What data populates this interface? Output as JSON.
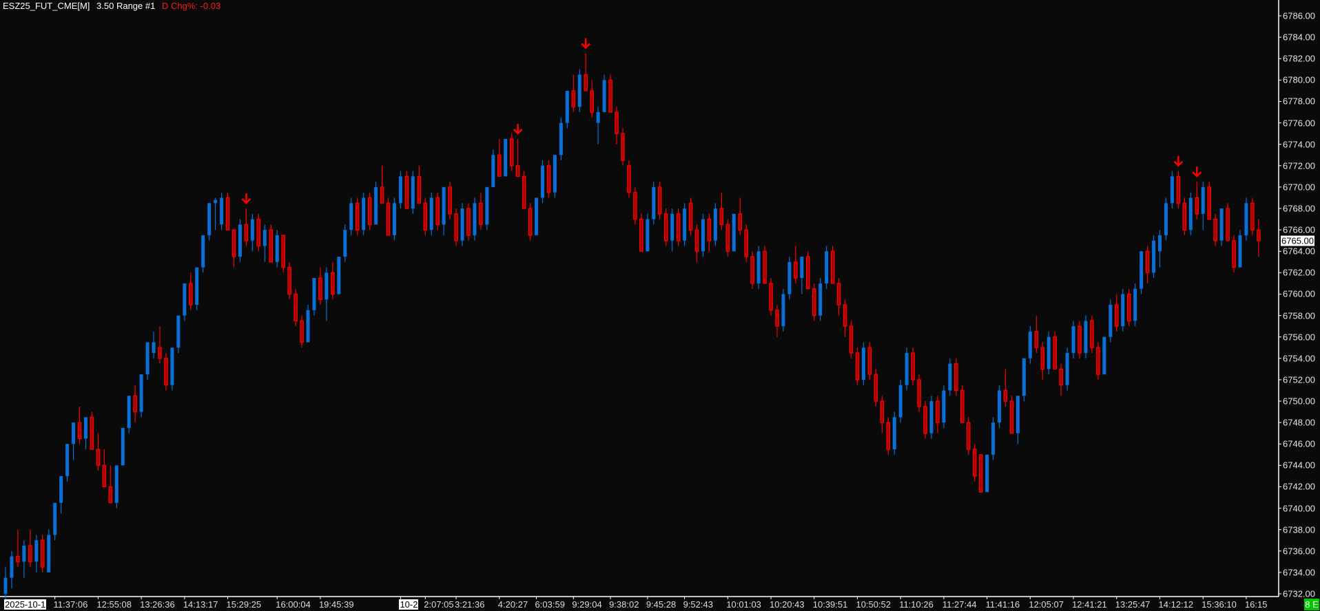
{
  "header": {
    "symbol": "ESZ25_FUT_CME[M]",
    "bar_type": "3.50 Range #1",
    "change": "D Chg%: -0.03"
  },
  "colors": {
    "background": "#0b0a0b",
    "up": "#0a6fd6",
    "down_border": "#ff0000",
    "down_fill": "#a80000",
    "signal": "#ff0000",
    "badge": "#00c800"
  },
  "current_price": "6765.00",
  "status_badge": "8 E",
  "chart_data": {
    "type": "candlestick",
    "ylim": [
      6732,
      6786
    ],
    "y_ticks": [
      "6786.00",
      "6784.00",
      "6782.00",
      "6780.00",
      "6778.00",
      "6776.00",
      "6774.00",
      "6772.00",
      "6770.00",
      "6768.00",
      "6766.00",
      "6764.00",
      "6762.00",
      "6760.00",
      "6758.00",
      "6756.00",
      "6754.00",
      "6752.00",
      "6750.00",
      "6748.00",
      "6746.00",
      "6744.00",
      "6742.00",
      "6740.00",
      "6738.00",
      "6736.00",
      "6734.00",
      "6732.00"
    ],
    "x_ticks": [
      {
        "bar": 0,
        "label": "2025-10-1",
        "date": true
      },
      {
        "bar": 8,
        "label": "11:37:06"
      },
      {
        "bar": 15,
        "label": "12:55:08"
      },
      {
        "bar": 22,
        "label": "13:26:36"
      },
      {
        "bar": 29,
        "label": "14:13:17"
      },
      {
        "bar": 36,
        "label": "15:29:25"
      },
      {
        "bar": 44,
        "label": "16:00:04"
      },
      {
        "bar": 51,
        "label": "19:45:39"
      },
      {
        "bar": 64,
        "label": "10-2",
        "date": true
      },
      {
        "bar": 68,
        "label": "2:07:05"
      },
      {
        "bar": 73,
        "label": "3:21:36"
      },
      {
        "bar": 80,
        "label": "4:20:27"
      },
      {
        "bar": 86,
        "label": "6:03:59"
      },
      {
        "bar": 92,
        "label": "9:29:04"
      },
      {
        "bar": 98,
        "label": "9:38:02"
      },
      {
        "bar": 104,
        "label": "9:45:28"
      },
      {
        "bar": 110,
        "label": "9:52:43"
      },
      {
        "bar": 117,
        "label": "10:01:03"
      },
      {
        "bar": 124,
        "label": "10:20:43"
      },
      {
        "bar": 131,
        "label": "10:39:51"
      },
      {
        "bar": 138,
        "label": "10:50:52"
      },
      {
        "bar": 145,
        "label": "11:10:26"
      },
      {
        "bar": 152,
        "label": "11:27:44"
      },
      {
        "bar": 159,
        "label": "11:41:16"
      },
      {
        "bar": 166,
        "label": "12:05:07"
      },
      {
        "bar": 173,
        "label": "12:41:21"
      },
      {
        "bar": 180,
        "label": "13:25:47"
      },
      {
        "bar": 187,
        "label": "14:12:12"
      },
      {
        "bar": 194,
        "label": "15:36:10"
      },
      {
        "bar": 201,
        "label": "16:15"
      }
    ],
    "signals_down_arrow_bars": [
      39,
      83,
      94,
      190,
      193
    ],
    "candles_ohlc": [
      [
        6732,
        6734.5,
        6731,
        6733.5
      ],
      [
        6733.5,
        6736,
        6732.5,
        6735.5
      ],
      [
        6735.5,
        6738,
        6734.5,
        6735
      ],
      [
        6735,
        6737,
        6733.5,
        6736.5
      ],
      [
        6736.5,
        6738,
        6734.5,
        6735
      ],
      [
        6735,
        6737.5,
        6734,
        6737
      ],
      [
        6737,
        6737.5,
        6734,
        6734.5
      ],
      [
        6734,
        6738,
        6734,
        6737.5
      ],
      [
        6737.5,
        6740.5,
        6737,
        6740.5
      ],
      [
        6740.5,
        6743,
        6739.5,
        6743
      ],
      [
        6743,
        6746,
        6742.5,
        6746
      ],
      [
        6746,
        6748,
        6744.5,
        6748
      ],
      [
        6748,
        6749.5,
        6746,
        6746.5
      ],
      [
        6746.5,
        6748.5,
        6745.5,
        6748.5
      ],
      [
        6748.5,
        6749,
        6745.5,
        6745.5
      ],
      [
        6745.5,
        6747,
        6743.5,
        6744
      ],
      [
        6744,
        6745.5,
        6742,
        6742
      ],
      [
        6742,
        6744,
        6740.5,
        6740.5
      ],
      [
        6740.5,
        6744,
        6740,
        6744
      ],
      [
        6744,
        6747.5,
        6744,
        6747.5
      ],
      [
        6747.5,
        6750.5,
        6747,
        6750.5
      ],
      [
        6750.5,
        6751.5,
        6748,
        6749
      ],
      [
        6749,
        6752.5,
        6748.5,
        6752.5
      ],
      [
        6752.5,
        6755.5,
        6752,
        6755.5
      ],
      [
        6754.5,
        6756.5,
        6754,
        6755.5
      ],
      [
        6755,
        6757,
        6753.5,
        6754
      ],
      [
        6754,
        6754.5,
        6751,
        6751.5
      ],
      [
        6751.5,
        6755,
        6751,
        6755
      ],
      [
        6755,
        6758,
        6754.5,
        6758
      ],
      [
        6758,
        6761,
        6757.5,
        6761
      ],
      [
        6761,
        6762,
        6758.5,
        6759
      ],
      [
        6759,
        6762.5,
        6758.5,
        6762.5
      ],
      [
        6762.5,
        6765.5,
        6762,
        6765.5
      ],
      [
        6765.5,
        6768.5,
        6765,
        6768.5
      ],
      [
        6768.5,
        6769,
        6766,
        6768.8
      ],
      [
        6766.5,
        6769.5,
        6766,
        6769
      ],
      [
        6769,
        6769.5,
        6766,
        6766
      ],
      [
        6766,
        6766,
        6762.5,
        6763.5
      ],
      [
        6763.5,
        6767,
        6763,
        6766.5
      ],
      [
        6766.5,
        6768,
        6764.5,
        6765
      ],
      [
        6765,
        6767.5,
        6764,
        6767
      ],
      [
        6767,
        6767.5,
        6764,
        6764.5
      ],
      [
        6764.5,
        6766.5,
        6763,
        6766
      ],
      [
        6766,
        6766.5,
        6763,
        6763
      ],
      [
        6763,
        6766,
        6762.5,
        6765.5
      ],
      [
        6765.5,
        6765.5,
        6762,
        6762.5
      ],
      [
        6762.5,
        6763,
        6759.5,
        6760
      ],
      [
        6760,
        6760.5,
        6757,
        6757.5
      ],
      [
        6757.5,
        6758,
        6755,
        6755.5
      ],
      [
        6755.5,
        6759,
        6755.5,
        6758.5
      ],
      [
        6758.5,
        6761.5,
        6758,
        6761.5
      ],
      [
        6761.5,
        6762.5,
        6759,
        6759.5
      ],
      [
        6759.5,
        6762.5,
        6757.5,
        6762
      ],
      [
        6762,
        6763,
        6759.5,
        6760
      ],
      [
        6760,
        6763.5,
        6760,
        6763.5
      ],
      [
        6763.5,
        6766.5,
        6763,
        6766
      ],
      [
        6766,
        6769,
        6765.5,
        6768.5
      ],
      [
        6768.5,
        6769,
        6765.5,
        6766
      ],
      [
        6766,
        6769.5,
        6765.5,
        6769
      ],
      [
        6769,
        6769.5,
        6766,
        6766.5
      ],
      [
        6766.5,
        6770.5,
        6766.5,
        6770
      ],
      [
        6770,
        6772,
        6768.5,
        6768.5
      ],
      [
        6768.5,
        6769,
        6765.5,
        6765.5
      ],
      [
        6765.5,
        6769,
        6765,
        6768.5
      ],
      [
        6768.5,
        6771.5,
        6768,
        6771
      ],
      [
        6771,
        6771.5,
        6768,
        6768
      ],
      [
        6768,
        6771.5,
        6767.5,
        6771
      ],
      [
        6771,
        6772,
        6768.5,
        6768.5
      ],
      [
        6768.5,
        6769,
        6765.5,
        6766
      ],
      [
        6766,
        6769.5,
        6765.5,
        6769
      ],
      [
        6769,
        6769.5,
        6766,
        6766.5
      ],
      [
        6766.5,
        6770,
        6765.5,
        6770
      ],
      [
        6770,
        6770.5,
        6767,
        6767.5
      ],
      [
        6767.5,
        6768,
        6764.5,
        6765
      ],
      [
        6765,
        6768.5,
        6764.5,
        6768
      ],
      [
        6768,
        6768.5,
        6765,
        6765.5
      ],
      [
        6765.5,
        6769,
        6765,
        6768.5
      ],
      [
        6768.5,
        6769.5,
        6766,
        6766.5
      ],
      [
        6766.5,
        6770,
        6766,
        6770
      ],
      [
        6770,
        6773.5,
        6770,
        6773
      ],
      [
        6773,
        6774.5,
        6771,
        6771
      ],
      [
        6771,
        6774.5,
        6771,
        6774.5
      ],
      [
        6774.5,
        6775,
        6771.5,
        6772
      ],
      [
        6772,
        6774.5,
        6771,
        6771
      ],
      [
        6771,
        6771.5,
        6768,
        6768
      ],
      [
        6768,
        6768.5,
        6765,
        6765.5
      ],
      [
        6765.5,
        6769,
        6765.5,
        6769
      ],
      [
        6769,
        6772.5,
        6768.5,
        6772
      ],
      [
        6772,
        6772.5,
        6769,
        6769.5
      ],
      [
        6769.5,
        6773,
        6769,
        6773
      ],
      [
        6773,
        6776.5,
        6772.5,
        6776
      ],
      [
        6776,
        6779,
        6775.5,
        6779
      ],
      [
        6779,
        6780.5,
        6777,
        6777.5
      ],
      [
        6777.5,
        6781,
        6777,
        6780.5
      ],
      [
        6780.5,
        6782.5,
        6779,
        6779
      ],
      [
        6779,
        6780,
        6776.5,
        6777
      ],
      [
        6776,
        6777.5,
        6774,
        6777
      ],
      [
        6777,
        6780.5,
        6777,
        6780
      ],
      [
        6780,
        6780.5,
        6777,
        6777
      ],
      [
        6777,
        6777.5,
        6774,
        6775
      ],
      [
        6775,
        6775.5,
        6772,
        6772.5
      ],
      [
        6772,
        6772.5,
        6769,
        6769.5
      ],
      [
        6769.5,
        6770,
        6766.5,
        6767
      ],
      [
        6767,
        6767.5,
        6764,
        6764
      ],
      [
        6764,
        6767.5,
        6764,
        6767
      ],
      [
        6767,
        6770.5,
        6766.5,
        6770
      ],
      [
        6770,
        6770.5,
        6767,
        6767.5
      ],
      [
        6767.5,
        6768,
        6764.5,
        6765
      ],
      [
        6765,
        6768,
        6764,
        6767.5
      ],
      [
        6767.5,
        6768,
        6764.5,
        6765
      ],
      [
        6765,
        6768.5,
        6764.5,
        6768
      ],
      [
        6768.5,
        6769,
        6765.5,
        6766
      ],
      [
        6766,
        6766.5,
        6763,
        6764
      ],
      [
        6764,
        6767.5,
        6763.5,
        6767
      ],
      [
        6767,
        6767.5,
        6764,
        6765
      ],
      [
        6765,
        6768.5,
        6764.5,
        6768
      ],
      [
        6768,
        6769.5,
        6766,
        6766.5
      ],
      [
        6766.5,
        6767,
        6763.5,
        6764
      ],
      [
        6764,
        6767.5,
        6764,
        6767.5
      ],
      [
        6767.5,
        6769,
        6765.5,
        6766
      ],
      [
        6766,
        6766.5,
        6763,
        6763.5
      ],
      [
        6763.5,
        6764,
        6760.5,
        6761
      ],
      [
        6761,
        6764.5,
        6760.5,
        6764
      ],
      [
        6764,
        6764.5,
        6761,
        6761
      ],
      [
        6761,
        6761.5,
        6758,
        6758.5
      ],
      [
        6758.5,
        6759,
        6756,
        6757
      ],
      [
        6757,
        6760.5,
        6756.5,
        6760
      ],
      [
        6760,
        6763.5,
        6759.5,
        6763
      ],
      [
        6763,
        6764.5,
        6761,
        6761.5
      ],
      [
        6761.5,
        6763.5,
        6760,
        6763.5
      ],
      [
        6763.5,
        6764,
        6760.5,
        6760.5
      ],
      [
        6760.5,
        6761,
        6757.5,
        6758
      ],
      [
        6758,
        6761.5,
        6757.5,
        6761
      ],
      [
        6761,
        6764.5,
        6760.5,
        6764
      ],
      [
        6764,
        6764.5,
        6761,
        6761
      ],
      [
        6761,
        6761.5,
        6758,
        6759
      ],
      [
        6759,
        6759.5,
        6756,
        6757
      ],
      [
        6757,
        6757.5,
        6754,
        6754.5
      ],
      [
        6754.5,
        6755,
        6751.5,
        6752
      ],
      [
        6752,
        6755.5,
        6751.5,
        6755
      ],
      [
        6755,
        6755.5,
        6752,
        6752.5
      ],
      [
        6752.5,
        6753,
        6749.5,
        6750
      ],
      [
        6750,
        6750.5,
        6747,
        6748
      ],
      [
        6748,
        6748.5,
        6745,
        6745.5
      ],
      [
        6745.5,
        6749,
        6745,
        6748.5
      ],
      [
        6748.5,
        6752,
        6748,
        6751.5
      ],
      [
        6751.5,
        6755,
        6751,
        6754.5
      ],
      [
        6754.5,
        6755,
        6751.5,
        6752
      ],
      [
        6752,
        6752.5,
        6749,
        6749.5
      ],
      [
        6749.5,
        6750,
        6746.5,
        6747
      ],
      [
        6747,
        6750.5,
        6746.5,
        6750
      ],
      [
        6750,
        6750.5,
        6747,
        6748
      ],
      [
        6748,
        6751.5,
        6747.5,
        6751
      ],
      [
        6751,
        6754,
        6750.5,
        6753.5
      ],
      [
        6753.5,
        6754,
        6750.5,
        6751
      ],
      [
        6751,
        6751.5,
        6748,
        6748
      ],
      [
        6748,
        6748.5,
        6745,
        6745.5
      ],
      [
        6745.5,
        6746,
        6742.5,
        6743
      ],
      [
        6745,
        6745,
        6741.5,
        6741.5
      ],
      [
        6741.5,
        6745,
        6741.5,
        6745
      ],
      [
        6745,
        6748.5,
        6744.5,
        6748
      ],
      [
        6748,
        6751.5,
        6747.5,
        6751
      ],
      [
        6751,
        6753,
        6749.5,
        6750
      ],
      [
        6750,
        6750.5,
        6747,
        6747
      ],
      [
        6747,
        6750.5,
        6746,
        6750.5
      ],
      [
        6750.5,
        6754,
        6750,
        6754
      ],
      [
        6754,
        6757,
        6753.5,
        6756.5
      ],
      [
        6756.5,
        6758,
        6754.5,
        6755
      ],
      [
        6755,
        6755.5,
        6752,
        6753
      ],
      [
        6753,
        6756.5,
        6752.5,
        6756
      ],
      [
        6756,
        6756.5,
        6753,
        6753
      ],
      [
        6753,
        6753.5,
        6750.5,
        6751.5
      ],
      [
        6751.5,
        6755,
        6751,
        6754.5
      ],
      [
        6754.5,
        6757.5,
        6754,
        6757
      ],
      [
        6757,
        6757.5,
        6754,
        6754.5
      ],
      [
        6754.5,
        6758,
        6754,
        6757.5
      ],
      [
        6757.5,
        6758,
        6754.5,
        6755
      ],
      [
        6755,
        6755.5,
        6752,
        6752.5
      ],
      [
        6752.5,
        6756,
        6752.5,
        6756
      ],
      [
        6756,
        6759.5,
        6755.5,
        6759
      ],
      [
        6759,
        6760,
        6756.5,
        6757
      ],
      [
        6757,
        6760.5,
        6756.5,
        6760
      ],
      [
        6760,
        6760.5,
        6757,
        6757.5
      ],
      [
        6757.5,
        6761,
        6757,
        6760.5
      ],
      [
        6760.5,
        6764,
        6760,
        6764
      ],
      [
        6764,
        6764.5,
        6761,
        6762
      ],
      [
        6762,
        6765.5,
        6761.5,
        6765
      ],
      [
        6764,
        6766,
        6762.5,
        6765.5
      ],
      [
        6765.5,
        6769,
        6765,
        6768.5
      ],
      [
        6768.5,
        6771.5,
        6768,
        6771
      ],
      [
        6771,
        6771.5,
        6768,
        6768.5
      ],
      [
        6768.5,
        6769,
        6765.5,
        6766
      ],
      [
        6766,
        6769.5,
        6765.5,
        6769
      ],
      [
        6769,
        6770.5,
        6767,
        6767.5
      ],
      [
        6767.5,
        6770.5,
        6766,
        6770
      ],
      [
        6770,
        6770.5,
        6767,
        6767
      ],
      [
        6767,
        6767.5,
        6764.5,
        6765
      ],
      [
        6765,
        6768,
        6764.5,
        6768
      ],
      [
        6768,
        6768.5,
        6765,
        6765
      ],
      [
        6765,
        6765.5,
        6762,
        6762.5
      ],
      [
        6762.5,
        6766,
        6762.5,
        6765.5
      ],
      [
        6765.5,
        6769,
        6765,
        6768.5
      ],
      [
        6768.5,
        6769,
        6765.5,
        6766
      ],
      [
        6766,
        6767,
        6763.5,
        6765
      ]
    ]
  }
}
